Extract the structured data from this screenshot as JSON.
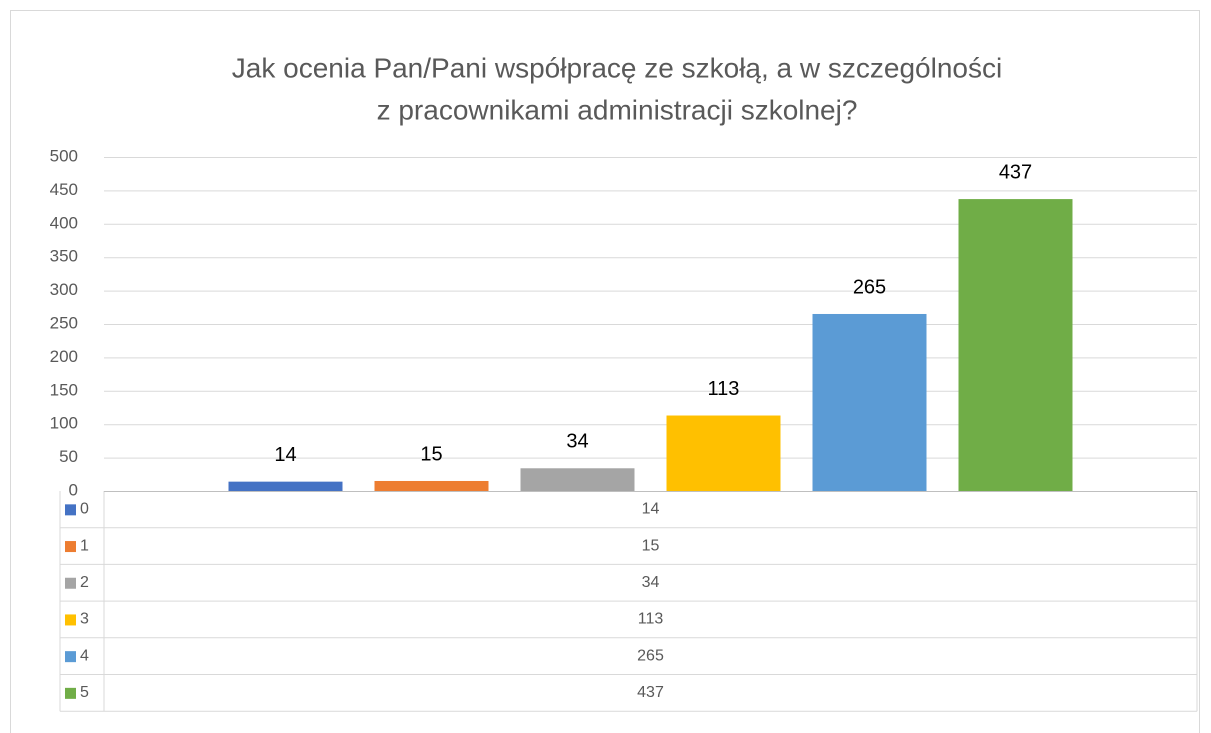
{
  "chart_data": {
    "type": "bar",
    "title": "Jak ocenia Pan/Pani współpracę ze szkołą, a w szczególności",
    "subtitle": "z pracownikami administracji szkolnej?",
    "categories": [
      null
    ],
    "series": [
      {
        "name": "0",
        "color": "#4472c4",
        "values": [
          14
        ]
      },
      {
        "name": "1",
        "color": "#ed7d31",
        "values": [
          15
        ]
      },
      {
        "name": "2",
        "color": "#a5a5a5",
        "values": [
          34
        ]
      },
      {
        "name": "3",
        "color": "#ffc000",
        "values": [
          113
        ]
      },
      {
        "name": "4",
        "color": "#5b9bd5",
        "values": [
          265
        ]
      },
      {
        "name": "5",
        "color": "#70ad47",
        "values": [
          437
        ]
      }
    ],
    "ylim": [
      0,
      500
    ],
    "yticks": [
      0,
      50,
      100,
      150,
      200,
      250,
      300,
      350,
      400,
      450,
      500
    ],
    "grid": true,
    "data_table": true
  }
}
